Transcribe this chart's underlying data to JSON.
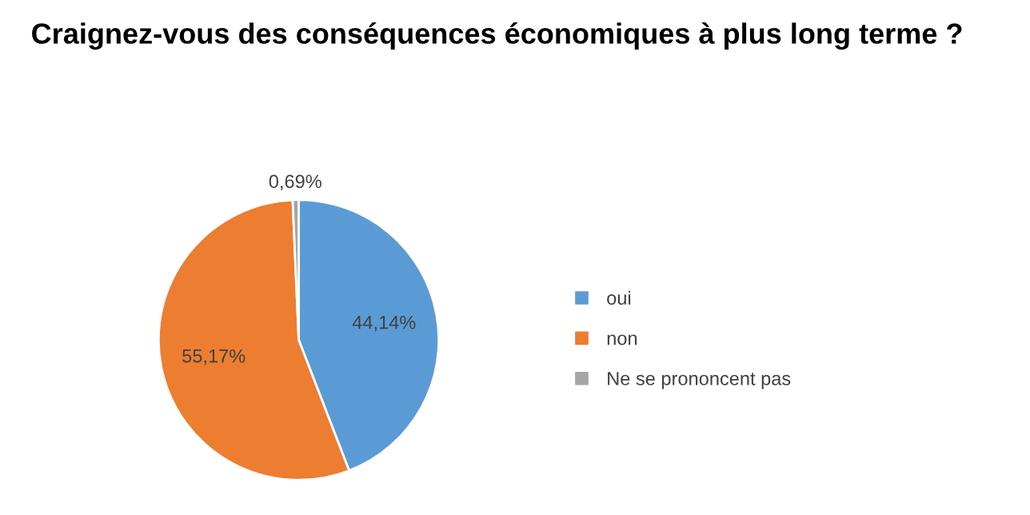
{
  "chart_data": {
    "type": "pie",
    "title": "Craignez-vous des conséquences économiques à plus long terme ?",
    "categories": [
      "oui",
      "non",
      "Ne se prononcent pas"
    ],
    "values": [
      44.14,
      55.17,
      0.69
    ],
    "value_labels": [
      "44,14%",
      "55,17%",
      "0,69%"
    ],
    "colors": [
      "#5b9bd5",
      "#ed7d31",
      "#a5a5a5"
    ],
    "legend": "right"
  }
}
